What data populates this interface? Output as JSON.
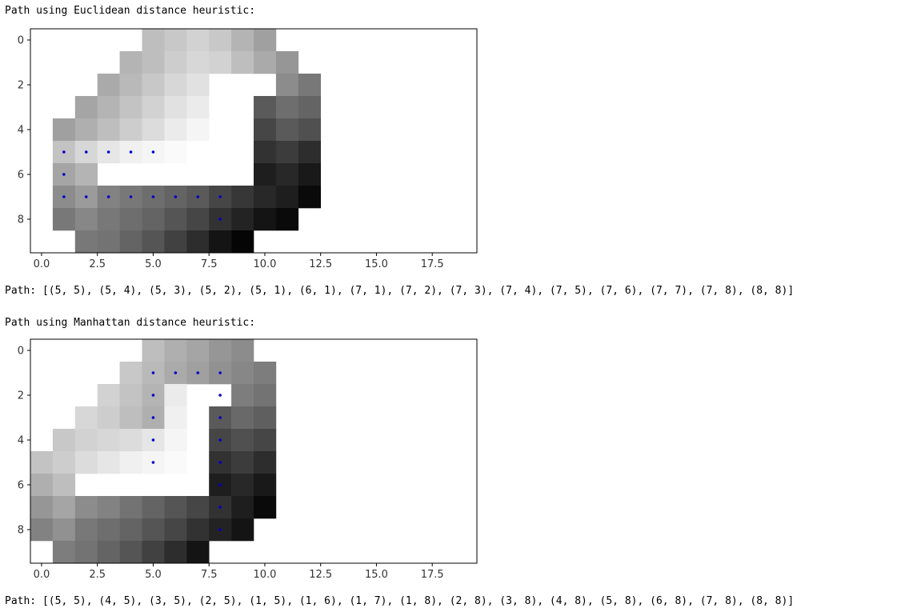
{
  "outputs": [
    {
      "heading": "Path using Euclidean distance heuristic:",
      "path_text": "Path: [(5, 5), (5, 4), (5, 3), (5, 2), (5, 1), (6, 1), (7, 1), (7, 2), (7, 3), (7, 4), (7, 5), (7, 6), (7, 7), (7, 8), (8, 8)]",
      "chart_data": {
        "type": "heatmap",
        "title": "",
        "xlabel": "",
        "ylabel": "",
        "xlim": [
          -0.5,
          19.5
        ],
        "ylim": [
          9.5,
          -0.5
        ],
        "x_ticks": [
          "0.0",
          "2.5",
          "5.0",
          "7.5",
          "10.0",
          "12.5",
          "15.0",
          "17.5"
        ],
        "y_ticks": [
          "0",
          "2",
          "4",
          "6",
          "8"
        ],
        "colormap": "gray",
        "grid": [
          [
            null,
            null,
            null,
            null,
            null,
            190,
            200,
            210,
            200,
            180,
            160,
            null,
            null,
            null,
            null,
            null,
            null,
            null,
            null,
            null
          ],
          [
            null,
            null,
            null,
            null,
            180,
            190,
            205,
            215,
            210,
            190,
            170,
            150,
            null,
            null,
            null,
            null,
            null,
            null,
            null,
            null
          ],
          [
            null,
            null,
            null,
            170,
            185,
            200,
            215,
            225,
            null,
            null,
            null,
            140,
            120,
            null,
            null,
            null,
            null,
            null,
            null,
            null
          ],
          [
            null,
            null,
            165,
            180,
            195,
            210,
            225,
            235,
            null,
            null,
            90,
            110,
            100,
            null,
            null,
            null,
            null,
            null,
            null,
            null
          ],
          [
            null,
            160,
            175,
            190,
            205,
            220,
            235,
            245,
            null,
            null,
            70,
            90,
            80,
            null,
            null,
            null,
            null,
            null,
            null,
            null
          ],
          [
            null,
            195,
            215,
            230,
            240,
            245,
            250,
            null,
            null,
            null,
            50,
            60,
            45,
            null,
            null,
            null,
            null,
            null,
            null,
            null
          ],
          [
            null,
            165,
            180,
            null,
            null,
            null,
            null,
            null,
            null,
            null,
            30,
            40,
            25,
            null,
            null,
            null,
            null,
            null,
            null,
            null
          ],
          [
            null,
            140,
            155,
            130,
            120,
            110,
            100,
            90,
            70,
            55,
            40,
            30,
            10,
            null,
            null,
            null,
            null,
            null,
            null,
            null
          ],
          [
            null,
            120,
            135,
            120,
            110,
            100,
            85,
            70,
            50,
            35,
            20,
            10,
            null,
            null,
            null,
            null,
            null,
            null,
            null,
            null
          ],
          [
            null,
            null,
            120,
            115,
            100,
            85,
            65,
            45,
            20,
            5,
            null,
            null,
            null,
            null,
            null,
            null,
            null,
            null,
            null,
            null
          ]
        ],
        "path": [
          [
            5,
            5
          ],
          [
            5,
            4
          ],
          [
            5,
            3
          ],
          [
            5,
            2
          ],
          [
            5,
            1
          ],
          [
            6,
            1
          ],
          [
            7,
            1
          ],
          [
            7,
            2
          ],
          [
            7,
            3
          ],
          [
            7,
            4
          ],
          [
            7,
            5
          ],
          [
            7,
            6
          ],
          [
            7,
            7
          ],
          [
            7,
            8
          ],
          [
            8,
            8
          ]
        ],
        "path_color": "#0000cc"
      }
    },
    {
      "heading": "Path using Manhattan distance heuristic:",
      "path_text": "Path: [(5, 5), (4, 5), (3, 5), (2, 5), (1, 5), (1, 6), (1, 7), (1, 8), (2, 8), (3, 8), (4, 8), (5, 8), (6, 8), (7, 8), (8, 8)]",
      "chart_data": {
        "type": "heatmap",
        "title": "",
        "xlabel": "",
        "ylabel": "",
        "xlim": [
          -0.5,
          19.5
        ],
        "ylim": [
          9.5,
          -0.5
        ],
        "x_ticks": [
          "0.0",
          "2.5",
          "5.0",
          "7.5",
          "10.0",
          "12.5",
          "15.0",
          "17.5"
        ],
        "y_ticks": [
          "0",
          "2",
          "4",
          "6",
          "8"
        ],
        "colormap": "gray",
        "grid": [
          [
            null,
            null,
            null,
            null,
            null,
            190,
            175,
            165,
            150,
            140,
            null,
            null,
            null,
            null,
            null,
            null,
            null,
            null,
            null,
            null
          ],
          [
            null,
            null,
            null,
            null,
            200,
            185,
            170,
            160,
            145,
            135,
            125,
            null,
            null,
            null,
            null,
            null,
            null,
            null,
            null,
            null
          ],
          [
            null,
            null,
            null,
            210,
            195,
            180,
            235,
            null,
            null,
            125,
            115,
            null,
            null,
            null,
            null,
            null,
            null,
            null,
            null,
            null
          ],
          [
            null,
            null,
            215,
            205,
            190,
            175,
            240,
            null,
            90,
            105,
            95,
            null,
            null,
            null,
            null,
            null,
            null,
            null,
            null,
            null
          ],
          [
            null,
            200,
            210,
            215,
            220,
            230,
            245,
            null,
            70,
            80,
            70,
            null,
            null,
            null,
            null,
            null,
            null,
            null,
            null,
            null
          ],
          [
            195,
            205,
            220,
            230,
            240,
            245,
            250,
            null,
            50,
            60,
            45,
            null,
            null,
            null,
            null,
            null,
            null,
            null,
            null,
            null
          ],
          [
            175,
            190,
            null,
            null,
            null,
            null,
            null,
            null,
            30,
            40,
            25,
            null,
            null,
            null,
            null,
            null,
            null,
            null,
            null,
            null
          ],
          [
            150,
            165,
            140,
            130,
            115,
            100,
            85,
            70,
            50,
            30,
            10,
            null,
            null,
            null,
            null,
            null,
            null,
            null,
            null,
            null
          ],
          [
            130,
            145,
            120,
            110,
            100,
            85,
            70,
            50,
            35,
            20,
            null,
            null,
            null,
            null,
            null,
            null,
            null,
            null,
            null,
            null
          ],
          [
            null,
            125,
            115,
            100,
            85,
            65,
            45,
            20,
            null,
            null,
            null,
            null,
            null,
            null,
            null,
            null,
            null,
            null,
            null,
            null
          ]
        ],
        "path": [
          [
            5,
            5
          ],
          [
            4,
            5
          ],
          [
            3,
            5
          ],
          [
            2,
            5
          ],
          [
            1,
            5
          ],
          [
            1,
            6
          ],
          [
            1,
            7
          ],
          [
            1,
            8
          ],
          [
            2,
            8
          ],
          [
            3,
            8
          ],
          [
            4,
            8
          ],
          [
            5,
            8
          ],
          [
            6,
            8
          ],
          [
            7,
            8
          ],
          [
            8,
            8
          ]
        ],
        "path_color": "#0000cc"
      }
    }
  ]
}
